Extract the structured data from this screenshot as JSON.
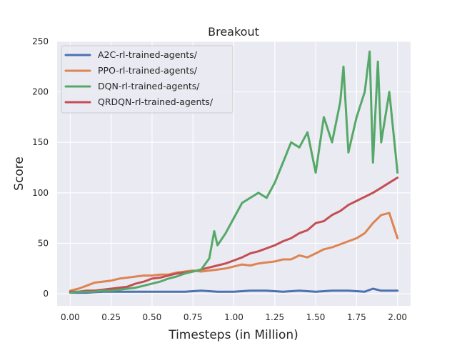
{
  "chart_data": {
    "type": "line",
    "title": "Breakout",
    "xlabel": "Timesteps (in Million)",
    "ylabel": "Score",
    "xlim": [
      -0.08,
      2.08
    ],
    "ylim": [
      -12,
      250
    ],
    "xticks": [
      "0.00",
      "0.25",
      "0.50",
      "0.75",
      "1.00",
      "1.25",
      "1.50",
      "1.75",
      "2.00"
    ],
    "xtick_values": [
      0,
      0.25,
      0.5,
      0.75,
      1.0,
      1.25,
      1.5,
      1.75,
      2.0
    ],
    "yticks": [
      "0",
      "50",
      "100",
      "150",
      "200",
      "250"
    ],
    "ytick_values": [
      0,
      50,
      100,
      150,
      200,
      250
    ],
    "grid": true,
    "legend_position": "top-left",
    "series": [
      {
        "name": "A2C-rl-trained-agents/",
        "color": "#4c72b0",
        "x": [
          0.0,
          0.1,
          0.2,
          0.3,
          0.4,
          0.5,
          0.6,
          0.7,
          0.8,
          0.9,
          1.0,
          1.1,
          1.2,
          1.3,
          1.4,
          1.5,
          1.6,
          1.7,
          1.8,
          1.85,
          1.9,
          2.0
        ],
        "y": [
          1,
          1,
          2,
          2,
          2,
          2,
          2,
          2,
          3,
          2,
          2,
          3,
          3,
          2,
          3,
          2,
          3,
          3,
          2,
          5,
          3,
          3
        ]
      },
      {
        "name": "PPO-rl-trained-agents/",
        "color": "#dd8452",
        "x": [
          0.0,
          0.05,
          0.1,
          0.15,
          0.2,
          0.25,
          0.3,
          0.35,
          0.4,
          0.45,
          0.5,
          0.55,
          0.6,
          0.65,
          0.7,
          0.75,
          0.8,
          0.85,
          0.9,
          0.95,
          1.0,
          1.05,
          1.1,
          1.15,
          1.2,
          1.25,
          1.3,
          1.35,
          1.4,
          1.45,
          1.5,
          1.55,
          1.6,
          1.65,
          1.7,
          1.75,
          1.8,
          1.85,
          1.9,
          1.95,
          2.0
        ],
        "y": [
          3,
          5,
          8,
          11,
          12,
          13,
          15,
          16,
          17,
          18,
          18,
          19,
          19,
          21,
          22,
          23,
          22,
          23,
          24,
          25,
          27,
          29,
          28,
          30,
          31,
          32,
          34,
          34,
          38,
          36,
          40,
          44,
          46,
          49,
          52,
          55,
          60,
          70,
          78,
          80,
          55
        ]
      },
      {
        "name": "DQN-rl-trained-agents/",
        "color": "#55a868",
        "x": [
          0.0,
          0.05,
          0.1,
          0.15,
          0.2,
          0.25,
          0.3,
          0.35,
          0.4,
          0.45,
          0.5,
          0.55,
          0.6,
          0.65,
          0.7,
          0.75,
          0.8,
          0.85,
          0.88,
          0.9,
          0.95,
          1.0,
          1.05,
          1.1,
          1.15,
          1.2,
          1.25,
          1.3,
          1.35,
          1.4,
          1.45,
          1.5,
          1.55,
          1.6,
          1.65,
          1.67,
          1.7,
          1.75,
          1.8,
          1.83,
          1.85,
          1.88,
          1.9,
          1.95,
          2.0
        ],
        "y": [
          1,
          2,
          2,
          2,
          3,
          3,
          4,
          5,
          6,
          8,
          10,
          12,
          15,
          17,
          20,
          22,
          24,
          35,
          62,
          48,
          60,
          75,
          90,
          95,
          100,
          95,
          110,
          130,
          150,
          145,
          160,
          120,
          175,
          150,
          190,
          225,
          140,
          175,
          200,
          240,
          130,
          230,
          150,
          200,
          120
        ]
      },
      {
        "name": "QRDQN-rl-trained-agents/",
        "color": "#c44e52",
        "x": [
          0.0,
          0.05,
          0.1,
          0.15,
          0.2,
          0.25,
          0.3,
          0.35,
          0.4,
          0.45,
          0.5,
          0.55,
          0.6,
          0.65,
          0.7,
          0.75,
          0.8,
          0.85,
          0.9,
          0.95,
          1.0,
          1.05,
          1.1,
          1.15,
          1.2,
          1.25,
          1.3,
          1.35,
          1.4,
          1.45,
          1.5,
          1.55,
          1.6,
          1.65,
          1.7,
          1.75,
          1.8,
          1.85,
          1.9,
          1.95,
          2.0
        ],
        "y": [
          2,
          2,
          3,
          3,
          4,
          5,
          6,
          7,
          10,
          12,
          15,
          16,
          18,
          20,
          21,
          22,
          24,
          26,
          28,
          30,
          33,
          36,
          40,
          42,
          45,
          48,
          52,
          55,
          60,
          63,
          70,
          72,
          78,
          82,
          88,
          92,
          96,
          100,
          105,
          110,
          115
        ]
      }
    ]
  }
}
